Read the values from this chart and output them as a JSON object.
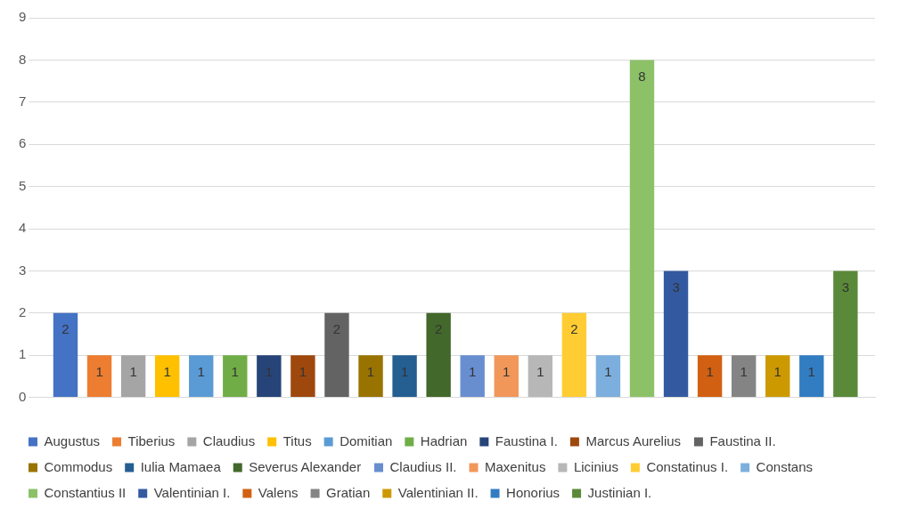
{
  "chart_data": {
    "type": "bar",
    "categories": [
      null
    ],
    "series": [
      {
        "name": "Augustus",
        "color": "#4472c4",
        "values": [
          2
        ]
      },
      {
        "name": "Tiberius",
        "color": "#ed7d31",
        "values": [
          1
        ]
      },
      {
        "name": "Claudius",
        "color": "#a5a5a5",
        "values": [
          1
        ]
      },
      {
        "name": "Titus",
        "color": "#ffc000",
        "values": [
          1
        ]
      },
      {
        "name": "Domitian",
        "color": "#5b9bd5",
        "values": [
          1
        ]
      },
      {
        "name": "Hadrian",
        "color": "#70ad47",
        "values": [
          1
        ]
      },
      {
        "name": "Faustina I.",
        "color": "#264478",
        "values": [
          1
        ]
      },
      {
        "name": "Marcus Aurelius",
        "color": "#9e480e",
        "values": [
          1
        ]
      },
      {
        "name": "Faustina II.",
        "color": "#636363",
        "values": [
          2
        ]
      },
      {
        "name": "Commodus",
        "color": "#997300",
        "values": [
          1
        ]
      },
      {
        "name": "Iulia Mamaea",
        "color": "#255e91",
        "values": [
          1
        ]
      },
      {
        "name": "Severus Alexander",
        "color": "#43682b",
        "values": [
          2
        ]
      },
      {
        "name": "Claudius II.",
        "color": "#698ed0",
        "values": [
          1
        ]
      },
      {
        "name": "Maxenitus",
        "color": "#f1975a",
        "values": [
          1
        ]
      },
      {
        "name": "Licinius",
        "color": "#b7b7b7",
        "values": [
          1
        ]
      },
      {
        "name": "Constatinus I.",
        "color": "#ffcd33",
        "values": [
          2
        ]
      },
      {
        "name": "Constans",
        "color": "#7cafdd",
        "values": [
          1
        ]
      },
      {
        "name": "Constantius II",
        "color": "#8cc168",
        "values": [
          8
        ]
      },
      {
        "name": "Valentinian I.",
        "color": "#335aa1",
        "values": [
          3
        ]
      },
      {
        "name": "Valens",
        "color": "#d26012",
        "values": [
          1
        ]
      },
      {
        "name": "Gratian",
        "color": "#848484",
        "values": [
          1
        ]
      },
      {
        "name": "Valentinian II.",
        "color": "#cc9a00",
        "values": [
          1
        ]
      },
      {
        "name": "Honorius",
        "color": "#327dc2",
        "values": [
          1
        ]
      },
      {
        "name": "Justinian I.",
        "color": "#5a8a39",
        "values": [
          3
        ]
      }
    ],
    "ylim": [
      0,
      9
    ],
    "yticks": [
      0,
      1,
      2,
      3,
      4,
      5,
      6,
      7,
      8,
      9
    ],
    "grid": "y",
    "legend": "bottom",
    "data_labels": true
  }
}
